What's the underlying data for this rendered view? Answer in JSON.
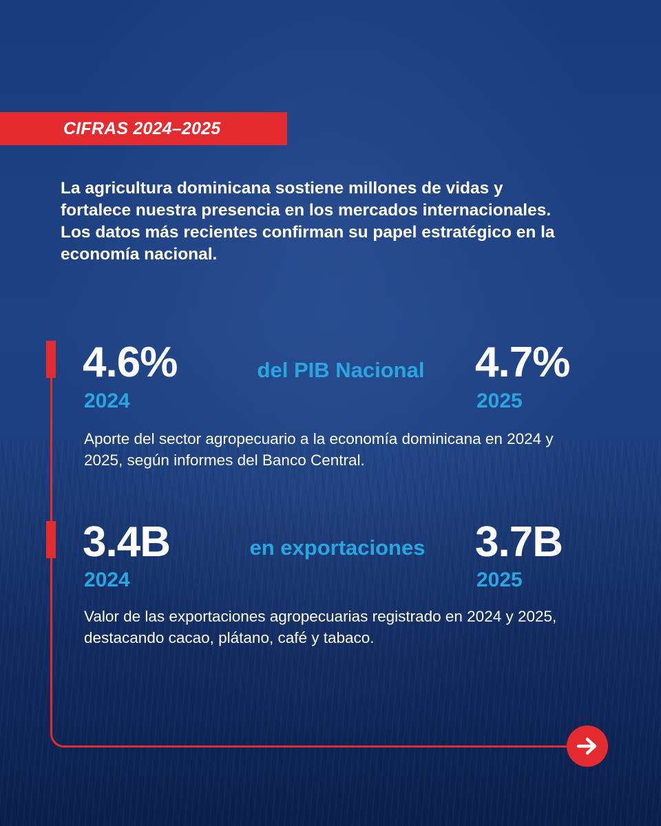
{
  "tag": {
    "label": "CIFRAS 2024–2025"
  },
  "intro": {
    "text": "La agricultura dominicana sostiene millones de vidas y fortalece nuestra presencia en los mercados internacionales. Los datos más recientes confirman su papel estratégico en la economía nacional."
  },
  "stats": [
    {
      "value_2024": "4.6%",
      "year_2024": "2024",
      "label": "del PIB Nacional",
      "value_2025": "4.7%",
      "year_2025": "2025",
      "description": "Aporte del sector agropecuario a la economía dominicana en 2024 y 2025, según informes del Banco Central."
    },
    {
      "value_2024": "3.4B",
      "year_2024": "2024",
      "label": "en exportaciones",
      "value_2025": "3.7B",
      "year_2025": "2025",
      "description": "Valor de las exportaciones agropecuarias registrado en 2024 y 2025, destacando cacao, plátano, café y tabaco."
    }
  ],
  "colors": {
    "accent_red": "#e42b2f",
    "accent_blue": "#29a6e0",
    "background": "#1b3a7a"
  },
  "icons": {
    "next": "arrow-right-icon"
  }
}
